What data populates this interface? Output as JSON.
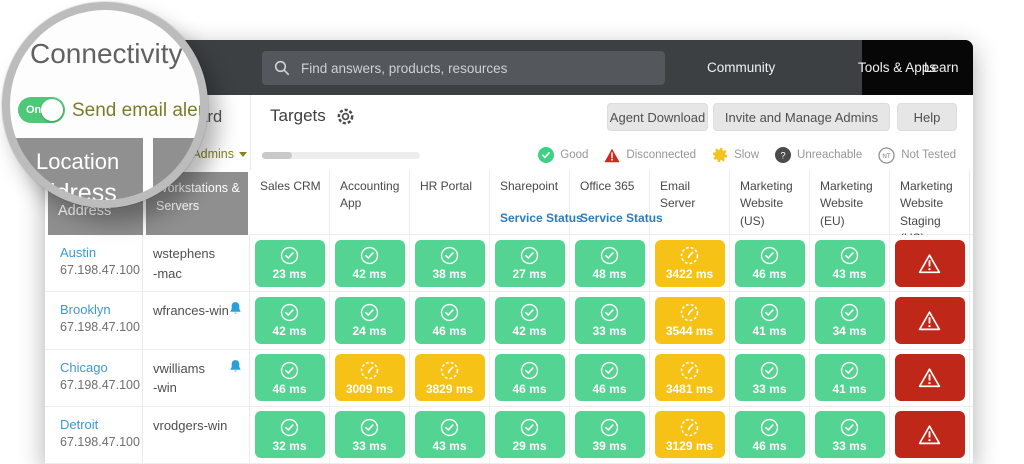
{
  "page": {
    "title": "Connectivity Dashboard"
  },
  "magnifier": {
    "title": "Connectivity D",
    "toggle": {
      "state": "On",
      "label": "Send email alerts"
    },
    "location_line1": "Location",
    "location_line2": "Address"
  },
  "topbar": {
    "search_placeholder": "Find answers, products, resources",
    "links": [
      "Community",
      "Tools & Apps",
      "Learn"
    ]
  },
  "toolbar": {
    "section_title": "Targets",
    "buttons": [
      "Agent Download",
      "Invite and Manage Admins",
      "Help"
    ]
  },
  "admins": {
    "label": "Admins"
  },
  "legend": {
    "items": [
      {
        "id": "good",
        "icon": "good-check-icon",
        "label": "Good"
      },
      {
        "id": "disconnected",
        "icon": "disconnected-triangle-icon",
        "label": "Disconnected"
      },
      {
        "id": "slow",
        "icon": "slow-gauge-icon",
        "label": "Slow"
      },
      {
        "id": "unreachable",
        "icon": "unreachable-question-icon",
        "label": "Unreachable"
      },
      {
        "id": "nottested",
        "icon": "not-tested-nt-icon",
        "label": "Not Tested"
      }
    ]
  },
  "colors": {
    "good": "#54d492",
    "slow": "#f6c216",
    "disconnected": "#bf2718",
    "topbar_bg": "#3c4043",
    "header_box": "#8f8f8f",
    "link_blue": "#2a7cbf",
    "city_blue": "#3a9ad9",
    "olive": "#84831d",
    "toggle_green": "#4ec878"
  },
  "table": {
    "row_headers": [
      "Location Address",
      "Workstations & Servers"
    ],
    "columns": [
      {
        "label": "Sales CRM"
      },
      {
        "label": "Accounting App"
      },
      {
        "label": "HR Portal"
      },
      {
        "label": "Sharepoint",
        "link": "Service Status"
      },
      {
        "label": "Office 365",
        "link": "Service Status"
      },
      {
        "label": "Email Server"
      },
      {
        "label": "Marketing Website (US)"
      },
      {
        "label": "Marketing Website (EU)"
      },
      {
        "label": "Marketing Website Staging (US)"
      }
    ],
    "rows": [
      {
        "location": "Austin",
        "ip": "67.198.47.100",
        "host": "wstephens\n-mac",
        "bell": false,
        "cells": [
          {
            "status": "good",
            "value": "23 ms"
          },
          {
            "status": "good",
            "value": "42 ms"
          },
          {
            "status": "good",
            "value": "38 ms"
          },
          {
            "status": "good",
            "value": "27 ms"
          },
          {
            "status": "good",
            "value": "48 ms"
          },
          {
            "status": "slow",
            "value": "3422 ms"
          },
          {
            "status": "good",
            "value": "46 ms"
          },
          {
            "status": "good",
            "value": "43 ms"
          },
          {
            "status": "disconnected",
            "value": ""
          }
        ]
      },
      {
        "location": "Brooklyn",
        "ip": "67.198.47.100",
        "host": "wfrances-win",
        "bell": true,
        "cells": [
          {
            "status": "good",
            "value": "42 ms"
          },
          {
            "status": "good",
            "value": "24 ms"
          },
          {
            "status": "good",
            "value": "46 ms"
          },
          {
            "status": "good",
            "value": "42 ms"
          },
          {
            "status": "good",
            "value": "33 ms"
          },
          {
            "status": "slow",
            "value": "3544 ms"
          },
          {
            "status": "good",
            "value": "41 ms"
          },
          {
            "status": "good",
            "value": "34 ms"
          },
          {
            "status": "disconnected",
            "value": ""
          }
        ]
      },
      {
        "location": "Chicago",
        "ip": "67.198.47.100",
        "host": "vwilliams\n-win",
        "bell": true,
        "cells": [
          {
            "status": "good",
            "value": "46 ms"
          },
          {
            "status": "slow",
            "value": "3009 ms"
          },
          {
            "status": "slow",
            "value": "3829 ms"
          },
          {
            "status": "good",
            "value": "46 ms"
          },
          {
            "status": "good",
            "value": "46 ms"
          },
          {
            "status": "slow",
            "value": "3481 ms"
          },
          {
            "status": "good",
            "value": "33 ms"
          },
          {
            "status": "good",
            "value": "41 ms"
          },
          {
            "status": "disconnected",
            "value": ""
          }
        ]
      },
      {
        "location": "Detroit",
        "ip": "67.198.47.100",
        "host": "vrodgers-win",
        "bell": false,
        "cells": [
          {
            "status": "good",
            "value": "32 ms"
          },
          {
            "status": "good",
            "value": "33 ms"
          },
          {
            "status": "good",
            "value": "43 ms"
          },
          {
            "status": "good",
            "value": "29 ms"
          },
          {
            "status": "good",
            "value": "39 ms"
          },
          {
            "status": "slow",
            "value": "3129 ms"
          },
          {
            "status": "good",
            "value": "46 ms"
          },
          {
            "status": "good",
            "value": "33 ms"
          },
          {
            "status": "disconnected",
            "value": ""
          }
        ]
      }
    ]
  }
}
